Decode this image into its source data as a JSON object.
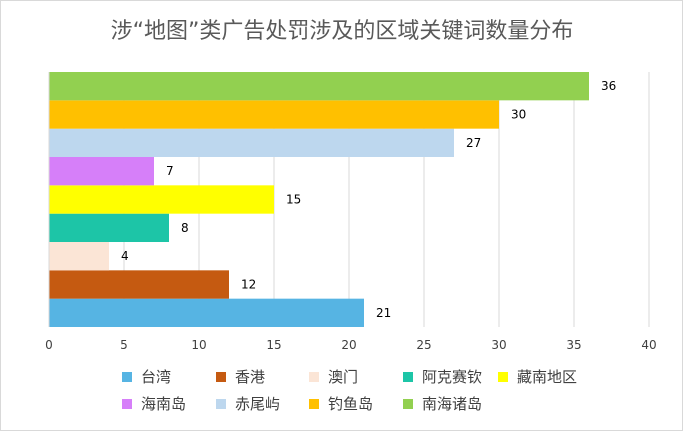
{
  "chart_data": {
    "type": "bar",
    "orientation": "horizontal",
    "title": "涉“地图”类广告处罚涉及的区域关键词数量分布",
    "categories": [
      "台湾",
      "香港",
      "澳门",
      "阿克赛钦",
      "藏南地区",
      "海南岛",
      "赤尾屿",
      "钓鱼岛",
      "南海诸岛"
    ],
    "values": [
      21,
      12,
      4,
      8,
      15,
      7,
      27,
      30,
      36
    ],
    "colors": [
      "#56b4e3",
      "#c55a11",
      "#fbe5d6",
      "#1dc5a7",
      "#ffff00",
      "#d67ff9",
      "#bdd7ee",
      "#ffc000",
      "#92d050"
    ],
    "xlim": [
      0,
      40
    ],
    "xticks": [
      "0",
      "5",
      "10",
      "15",
      "20",
      "25",
      "30",
      "35",
      "40"
    ],
    "grid": "vertical",
    "legend": "bottom",
    "data_labels": true
  }
}
